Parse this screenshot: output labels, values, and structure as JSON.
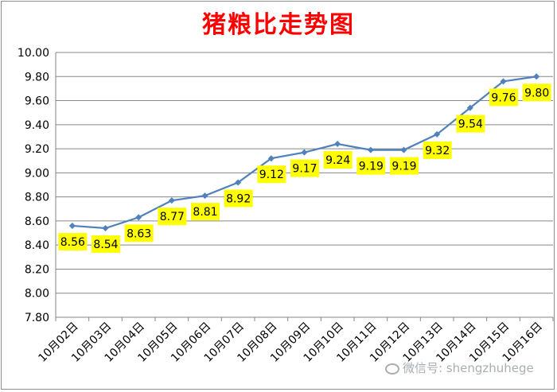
{
  "chart_data": {
    "type": "line",
    "title": "猪粮比走势图",
    "categories": [
      "10月02日",
      "10月03日",
      "10月04日",
      "10月05日",
      "10月06日",
      "10月07日",
      "10月08日",
      "10月09日",
      "10月10日",
      "10月11日",
      "10月12日",
      "10月13日",
      "10月14日",
      "10月15日",
      "10月16日"
    ],
    "values": [
      8.56,
      8.54,
      8.63,
      8.77,
      8.81,
      8.92,
      9.12,
      9.17,
      9.24,
      9.19,
      9.19,
      9.32,
      9.54,
      9.76,
      9.8
    ],
    "data_labels": [
      "8.56",
      "8.54",
      "8.63",
      "8.77",
      "8.81",
      "8.92",
      "9.12",
      "9.17",
      "9.24",
      "9.19",
      "9.19",
      "9.32",
      "9.54",
      "9.76",
      "9.80"
    ],
    "ylim": [
      7.8,
      10.0
    ],
    "y_ticks": [
      "7.80",
      "8.00",
      "8.20",
      "8.40",
      "8.60",
      "8.80",
      "9.00",
      "9.20",
      "9.40",
      "9.60",
      "9.80",
      "10.00"
    ],
    "grid": true,
    "line_color": "#4f81bd",
    "label_bg_color": "#ffff00",
    "title_color": "#ff0000",
    "watermark": "微信号: shengzhuhege"
  }
}
